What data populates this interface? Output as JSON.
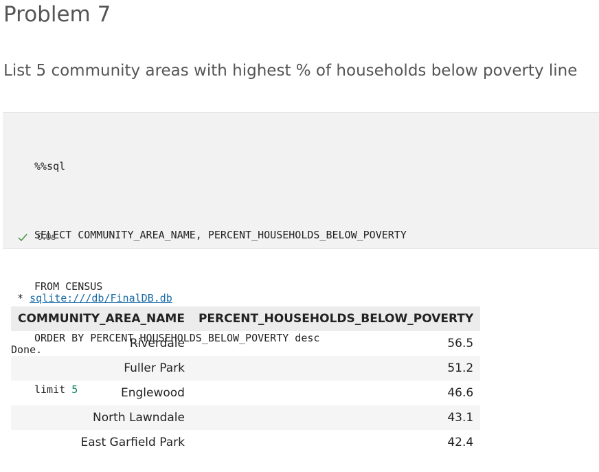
{
  "header": {
    "title": "Problem 7",
    "subtitle": "List 5 community areas with highest % of households below poverty line"
  },
  "code": {
    "magic": "%%sql",
    "lines": [
      "SELECT COMMUNITY_AREA_NAME, PERCENT_HOUSEHOLDS_BELOW_POVERTY",
      "FROM CENSUS",
      "ORDER BY PERCENT_HOUSEHOLDS_BELOW_POVERTY desc"
    ],
    "limit": {
      "keyword": "limit",
      "value": 5
    },
    "status": "0.0s"
  },
  "output": {
    "prefix": "*",
    "link": "sqlite:///db/FinalDB.db",
    "message": "Done."
  },
  "table": {
    "columns": [
      "COMMUNITY_AREA_NAME",
      "PERCENT_HOUSEHOLDS_BELOW_POVERTY"
    ],
    "rows": [
      [
        "Riverdale",
        56.5
      ],
      [
        "Fuller Park",
        51.2
      ],
      [
        "Englewood",
        46.6
      ],
      [
        "North Lawndale",
        43.1
      ],
      [
        "East Garfield Park",
        42.4
      ]
    ]
  }
}
